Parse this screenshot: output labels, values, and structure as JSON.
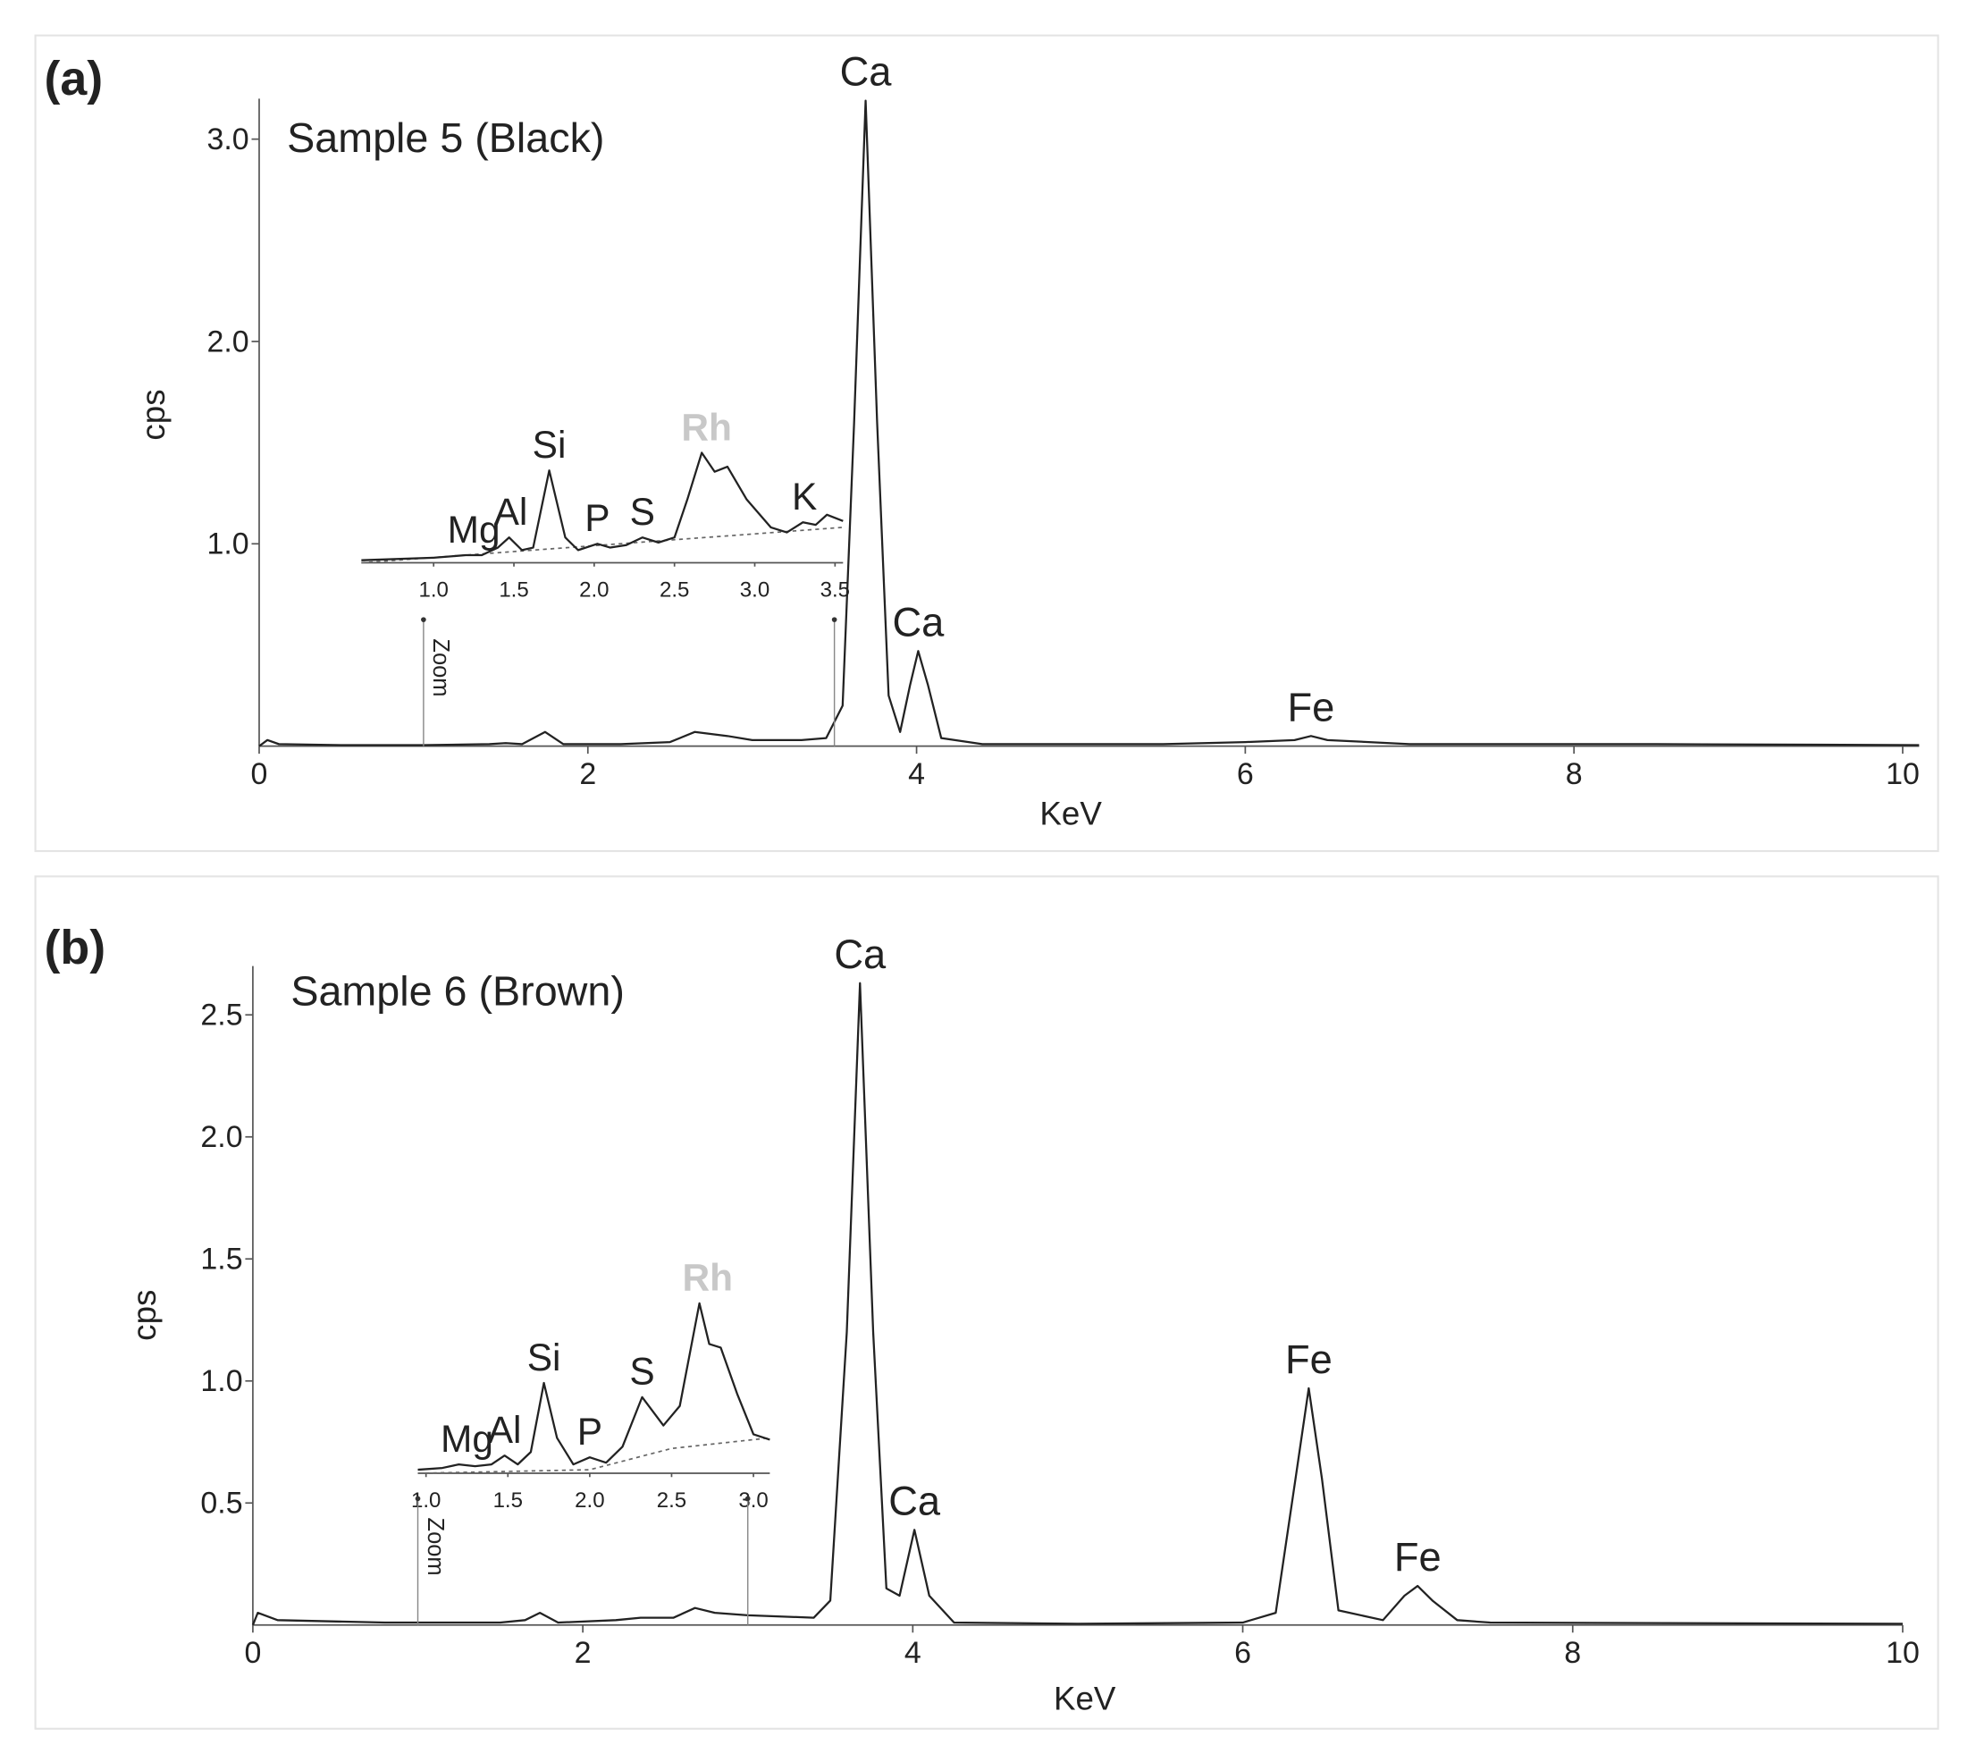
{
  "chart_data": [
    {
      "type": "line",
      "panel_label": "(a)",
      "title": "Sample 5 (Black)",
      "xlabel": "KeV",
      "ylabel": "cps",
      "color": "#222222",
      "x": [
        0,
        0.05,
        0.12,
        0.5,
        1.0,
        1.4,
        1.5,
        1.6,
        1.74,
        1.85,
        2.2,
        2.5,
        2.65,
        2.85,
        3.0,
        3.3,
        3.45,
        3.55,
        3.62,
        3.69,
        3.76,
        3.83,
        3.9,
        3.96,
        4.01,
        4.07,
        4.15,
        4.4,
        5.5,
        6.0,
        6.3,
        6.4,
        6.5,
        7.0,
        8.5,
        10.1
      ],
      "values": [
        0.0,
        0.03,
        0.01,
        0.005,
        0.005,
        0.01,
        0.015,
        0.01,
        0.07,
        0.01,
        0.01,
        0.02,
        0.07,
        0.05,
        0.03,
        0.03,
        0.04,
        0.2,
        1.6,
        3.19,
        1.6,
        0.25,
        0.07,
        0.3,
        0.47,
        0.3,
        0.04,
        0.01,
        0.01,
        0.02,
        0.03,
        0.05,
        0.03,
        0.01,
        0.01,
        0.005
      ],
      "xlim": [
        0,
        10.1
      ],
      "ylim": [
        0,
        3.2
      ],
      "xticks": [
        0,
        2,
        4,
        6,
        8,
        10
      ],
      "yticks": [
        {
          "value": 1.0,
          "label": "1.0"
        },
        {
          "value": 2.0,
          "label": "2.0"
        },
        {
          "value": 3.0,
          "label": "3.0"
        }
      ],
      "annotations": [
        {
          "text": "Ca",
          "x": 3.69
        },
        {
          "text": "Ca",
          "x": 4.01
        },
        {
          "text": "Fe",
          "x": 6.4
        }
      ],
      "inset": {
        "type": "line",
        "color": "#222222",
        "x": [
          0.55,
          1.0,
          1.2,
          1.3,
          1.4,
          1.47,
          1.55,
          1.62,
          1.72,
          1.82,
          1.9,
          2.02,
          2.1,
          2.2,
          2.3,
          2.4,
          2.5,
          2.58,
          2.67,
          2.75,
          2.83,
          2.95,
          3.1,
          3.2,
          3.3,
          3.38,
          3.45,
          3.55
        ],
        "values": [
          0.02,
          0.04,
          0.06,
          0.06,
          0.12,
          0.2,
          0.1,
          0.12,
          0.73,
          0.2,
          0.1,
          0.15,
          0.12,
          0.14,
          0.2,
          0.16,
          0.2,
          0.5,
          0.87,
          0.72,
          0.76,
          0.5,
          0.28,
          0.24,
          0.32,
          0.3,
          0.38,
          0.33
        ],
        "background": {
          "x": [
            0.55,
            3.55
          ],
          "values": [
            0.0,
            0.28
          ]
        },
        "xlim": [
          0.55,
          3.55
        ],
        "ylim": [
          0,
          1
        ],
        "xticks": [
          {
            "value": 1.0,
            "label": "1.0"
          },
          {
            "value": 1.5,
            "label": "1.5"
          },
          {
            "value": 2.0,
            "label": "2.0"
          },
          {
            "value": 2.5,
            "label": "2.5"
          },
          {
            "value": 3.0,
            "label": "3.0"
          },
          {
            "value": 3.5,
            "label": "3.5"
          }
        ],
        "annotations": [
          {
            "text": "Mg",
            "x": 1.25
          },
          {
            "text": "Al",
            "x": 1.48
          },
          {
            "text": "Si",
            "x": 1.72
          },
          {
            "text": "P",
            "x": 2.02
          },
          {
            "text": "S",
            "x": 2.3
          },
          {
            "text": "Rh",
            "x": 2.7,
            "color": "#c8c8c8"
          },
          {
            "text": "K",
            "x": 3.31
          }
        ],
        "zoom": {
          "label": "Zoom",
          "range": [
            1.0,
            3.5
          ]
        }
      }
    },
    {
      "type": "line",
      "panel_label": "(b)",
      "title": "Sample 6 (Brown)",
      "xlabel": "KeV",
      "ylabel": "cps",
      "color": "#222222",
      "x": [
        0,
        0.03,
        0.15,
        0.8,
        1.5,
        1.65,
        1.74,
        1.85,
        2.2,
        2.35,
        2.55,
        2.68,
        2.8,
        3.0,
        3.4,
        3.5,
        3.6,
        3.68,
        3.76,
        3.84,
        3.92,
        4.01,
        4.1,
        4.25,
        5.0,
        6.0,
        6.2,
        6.32,
        6.4,
        6.48,
        6.58,
        6.85,
        6.98,
        7.06,
        7.15,
        7.3,
        7.5,
        10.0
      ],
      "values": [
        0.0,
        0.05,
        0.02,
        0.01,
        0.01,
        0.02,
        0.05,
        0.01,
        0.02,
        0.03,
        0.03,
        0.07,
        0.05,
        0.04,
        0.03,
        0.1,
        1.2,
        2.63,
        1.2,
        0.15,
        0.12,
        0.39,
        0.12,
        0.01,
        0.005,
        0.01,
        0.05,
        0.6,
        0.97,
        0.6,
        0.06,
        0.02,
        0.12,
        0.16,
        0.1,
        0.02,
        0.01,
        0.005
      ],
      "xlim": [
        0,
        10
      ],
      "ylim": [
        0,
        2.7
      ],
      "xticks": [
        0,
        2,
        4,
        6,
        8,
        10
      ],
      "yticks": [
        0.5,
        {
          "value": 1.0,
          "label": "1.0"
        },
        1.5,
        {
          "value": 2.0,
          "label": "2.0"
        },
        2.5
      ],
      "annotations": [
        {
          "text": "Ca",
          "x": 3.68
        },
        {
          "text": "Ca",
          "x": 4.01
        },
        {
          "text": "Fe",
          "x": 6.4
        },
        {
          "text": "Fe",
          "x": 7.06
        }
      ],
      "inset": {
        "type": "line",
        "color": "#222222",
        "x": [
          0.95,
          1.1,
          1.2,
          1.3,
          1.4,
          1.48,
          1.56,
          1.64,
          1.72,
          1.8,
          1.9,
          2.0,
          2.1,
          2.2,
          2.32,
          2.45,
          2.55,
          2.67,
          2.73,
          2.8,
          2.9,
          3.0,
          3.1
        ],
        "values": [
          0.02,
          0.03,
          0.05,
          0.04,
          0.05,
          0.1,
          0.05,
          0.12,
          0.51,
          0.2,
          0.05,
          0.09,
          0.06,
          0.15,
          0.43,
          0.27,
          0.38,
          0.96,
          0.73,
          0.71,
          0.45,
          0.22,
          0.19
        ],
        "background": {
          "x": [
            0.95,
            2.0,
            2.5,
            3.1
          ],
          "values": [
            0.0,
            0.02,
            0.14,
            0.2
          ]
        },
        "xlim": [
          0.95,
          3.1
        ],
        "ylim": [
          0,
          1
        ],
        "xticks": [
          {
            "value": 1.0,
            "label": "1.0"
          },
          {
            "value": 1.5,
            "label": "1.5"
          },
          {
            "value": 2.0,
            "label": "2.0"
          },
          {
            "value": 2.5,
            "label": "2.5"
          },
          {
            "value": 3.0,
            "label": "3.0"
          }
        ],
        "annotations": [
          {
            "text": "Mg",
            "x": 1.25
          },
          {
            "text": "Al",
            "x": 1.48
          },
          {
            "text": "Si",
            "x": 1.72
          },
          {
            "text": "P",
            "x": 2.0
          },
          {
            "text": "S",
            "x": 2.32
          },
          {
            "text": "Rh",
            "x": 2.72,
            "color": "#c8c8c8"
          }
        ],
        "zoom": {
          "label": "Zoom",
          "range": [
            1.0,
            3.0
          ]
        }
      }
    }
  ]
}
